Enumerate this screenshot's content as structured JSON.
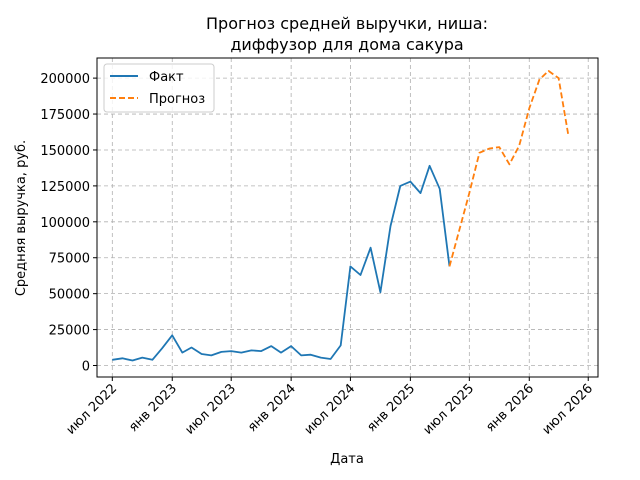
{
  "chart_data": {
    "type": "line",
    "title": [
      "Прогноз средней выручки, ниша:",
      "диффузор для дома сакура"
    ],
    "xlabel": "Дата",
    "ylabel": "Средняя выручка, руб.",
    "ylim": [
      -8000,
      214000
    ],
    "xlim": [
      "2022-05-15",
      "2026-07-31"
    ],
    "y_ticks": [
      0,
      25000,
      50000,
      75000,
      100000,
      125000,
      150000,
      175000,
      200000
    ],
    "x_ticks": [
      {
        "date": "2022-07-01",
        "label": "июл 2022"
      },
      {
        "date": "2023-01-01",
        "label": "янв 2023"
      },
      {
        "date": "2023-07-01",
        "label": "июл 2023"
      },
      {
        "date": "2024-01-01",
        "label": "янв 2024"
      },
      {
        "date": "2024-07-01",
        "label": "июл 2024"
      },
      {
        "date": "2025-01-01",
        "label": "янв 2025"
      },
      {
        "date": "2025-07-01",
        "label": "июл 2025"
      },
      {
        "date": "2026-01-01",
        "label": "янв 2026"
      },
      {
        "date": "2026-07-01",
        "label": "июл 2026"
      }
    ],
    "grid": true,
    "legend_position": "top-left",
    "series": [
      {
        "name": "Факт",
        "color": "#1f77b4",
        "style": "solid",
        "points": [
          [
            "2022-07-01",
            4000
          ],
          [
            "2022-08-01",
            5000
          ],
          [
            "2022-09-01",
            3500
          ],
          [
            "2022-10-01",
            5500
          ],
          [
            "2022-11-01",
            4000
          ],
          [
            "2022-12-01",
            12000
          ],
          [
            "2023-01-01",
            21000
          ],
          [
            "2023-02-01",
            9000
          ],
          [
            "2023-03-01",
            12500
          ],
          [
            "2023-04-01",
            8000
          ],
          [
            "2023-05-01",
            7000
          ],
          [
            "2023-06-01",
            9500
          ],
          [
            "2023-07-01",
            10000
          ],
          [
            "2023-08-01",
            9000
          ],
          [
            "2023-09-01",
            10500
          ],
          [
            "2023-10-01",
            10000
          ],
          [
            "2023-11-01",
            13500
          ],
          [
            "2023-12-01",
            9000
          ],
          [
            "2024-01-01",
            13500
          ],
          [
            "2024-02-01",
            7000
          ],
          [
            "2024-03-01",
            7500
          ],
          [
            "2024-04-01",
            5500
          ],
          [
            "2024-05-01",
            4500
          ],
          [
            "2024-06-01",
            14000
          ],
          [
            "2024-07-01",
            69000
          ],
          [
            "2024-08-01",
            63000
          ],
          [
            "2024-09-01",
            82000
          ],
          [
            "2024-10-01",
            51000
          ],
          [
            "2024-11-01",
            97000
          ],
          [
            "2024-12-01",
            125000
          ],
          [
            "2025-01-01",
            128000
          ],
          [
            "2025-02-01",
            120000
          ],
          [
            "2025-03-01",
            139000
          ],
          [
            "2025-04-01",
            123000
          ],
          [
            "2025-05-01",
            69000
          ]
        ]
      },
      {
        "name": "Прогноз",
        "color": "#ff7f0e",
        "style": "dashed",
        "points": [
          [
            "2025-05-01",
            69000
          ],
          [
            "2025-06-01",
            95000
          ],
          [
            "2025-07-01",
            120000
          ],
          [
            "2025-08-01",
            148000
          ],
          [
            "2025-09-01",
            151000
          ],
          [
            "2025-10-01",
            152000
          ],
          [
            "2025-11-01",
            140000
          ],
          [
            "2025-12-01",
            153000
          ],
          [
            "2026-01-01",
            179000
          ],
          [
            "2026-02-01",
            199000
          ],
          [
            "2026-03-01",
            205000
          ],
          [
            "2026-04-01",
            200000
          ],
          [
            "2026-05-01",
            160000
          ]
        ]
      }
    ]
  }
}
